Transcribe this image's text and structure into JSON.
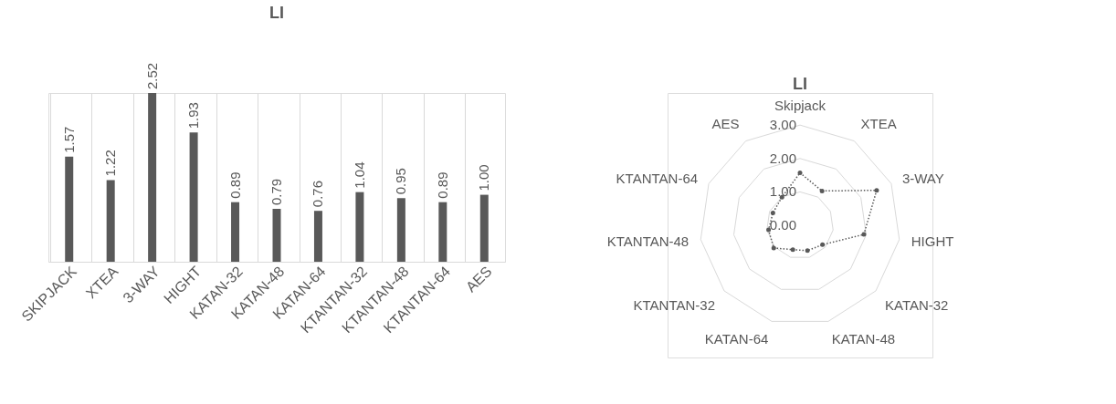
{
  "chart_data": [
    {
      "type": "bar",
      "title": "LI",
      "categories": [
        "SKIPJACK",
        "XTEA",
        "3-WAY",
        "HIGHT",
        "KATAN-32",
        "KATAN-48",
        "KATAN-64",
        "KTANTAN-32",
        "KTANTAN-48",
        "KTANTAN-64",
        "AES"
      ],
      "values": [
        1.57,
        1.22,
        2.52,
        1.93,
        0.89,
        0.79,
        0.76,
        1.04,
        0.95,
        0.89,
        1.0
      ],
      "color": "#595959",
      "value_labels": [
        "1.57",
        "1.22",
        "2.52",
        "1.93",
        "0.89",
        "0.79",
        "0.76",
        "1.04",
        "0.95",
        "0.89",
        "1.00"
      ],
      "grid": "x",
      "tick_labels": "x"
    },
    {
      "type": "radar",
      "title": "LI",
      "categories": [
        "Skipjack",
        "XTEA",
        "3-WAY",
        "HIGHT",
        "KATAN-32",
        "KATAN-48",
        "KATAN-64",
        "KTANTAN-32",
        "KTANTAN-48",
        "KTANTAN-64",
        "AES"
      ],
      "series": [
        {
          "color": "#595959",
          "values": [
            1.57,
            1.22,
            2.52,
            1.93,
            0.89,
            0.79,
            0.76,
            1.04,
            0.95,
            0.89,
            1.0
          ]
        }
      ],
      "ylim": [
        0,
        3
      ],
      "yticks": [
        {
          "value": 0,
          "label": "0.00"
        },
        {
          "value": 1,
          "label": "1.00"
        },
        {
          "value": 2,
          "label": "2.00"
        },
        {
          "value": 3,
          "label": "3.00"
        }
      ],
      "grid": true,
      "marker": "circle",
      "line_style": "dotted"
    }
  ]
}
